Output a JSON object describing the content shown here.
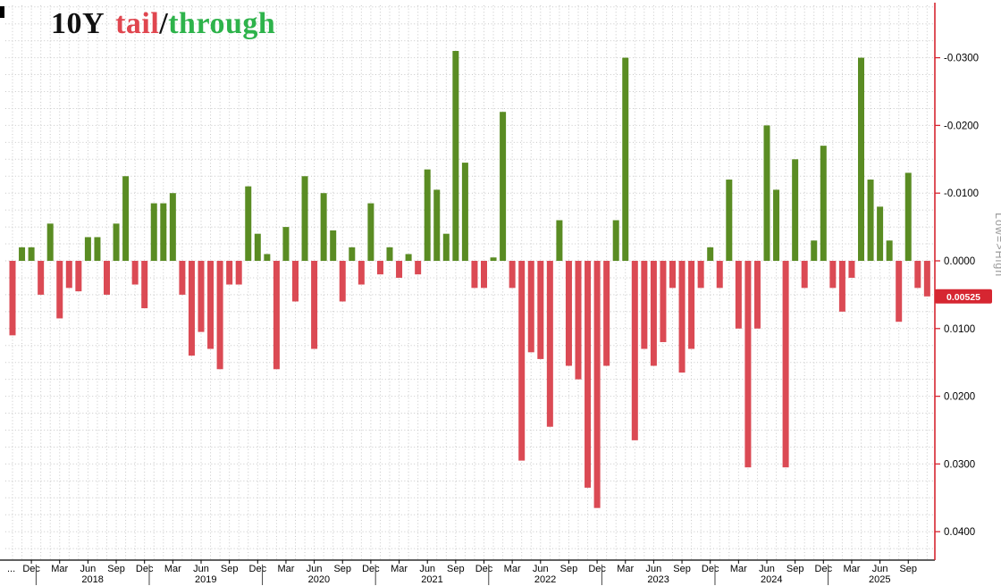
{
  "title": {
    "instrument": "10Y",
    "tail": "tail",
    "sep": "/",
    "through": "through"
  },
  "colors": {
    "tail_red": "#db4a54",
    "through_green": "#5a8c23",
    "title_red": "#e0464f",
    "title_green": "#2eb34b",
    "title_black": "#111111",
    "axis_red": "#d62631",
    "badge_bg": "#d62631",
    "badge_text": "#ffffff",
    "grid": "#c8c8c8",
    "axis_text": "#000000",
    "note_grey": "#9b9b9b",
    "x_axis_line": "#000000"
  },
  "y_axis": {
    "ticks": [
      {
        "label": "-0.0300",
        "value": -0.03
      },
      {
        "label": "-0.0200",
        "value": -0.02
      },
      {
        "label": "-0.0100",
        "value": -0.01
      },
      {
        "label": "0.0000",
        "value": 0.0
      },
      {
        "label": "0.0100",
        "value": 0.01
      },
      {
        "label": "0.0200",
        "value": 0.02
      },
      {
        "label": "0.0300",
        "value": 0.03
      },
      {
        "label": "0.0400",
        "value": 0.04
      }
    ],
    "current": {
      "label": "0.00525",
      "value": 0.00525
    },
    "note": "Low=>High"
  },
  "x_axis": {
    "leading_label": "...",
    "month_labels": {
      "03": "Mar",
      "06": "Jun",
      "09": "Sep",
      "12": "Dec"
    },
    "years": [
      "2018",
      "2019",
      "2020",
      "2021",
      "2022",
      "2023",
      "2024",
      "2025"
    ]
  },
  "chart_data": {
    "type": "bar",
    "title": "10Y tail/through",
    "ylabel": "Low=>High",
    "y_inverted": true,
    "ylim": [
      -0.0335,
      0.0425
    ],
    "yticks": [
      -0.03,
      -0.02,
      -0.01,
      0.0,
      0.01,
      0.02,
      0.03,
      0.04
    ],
    "grid": "dotted, monthly vertical / 0.0025 horizontal",
    "legend": "positive = tail (red, plotted downward), negative = through (green, plotted upward), right axis inverted Low=>High",
    "last_value": 0.00525,
    "months": [
      "2017-10",
      "2017-11",
      "2017-12",
      "2018-01",
      "2018-02",
      "2018-03",
      "2018-04",
      "2018-05",
      "2018-06",
      "2018-07",
      "2018-08",
      "2018-09",
      "2018-10",
      "2018-11",
      "2018-12",
      "2019-01",
      "2019-02",
      "2019-03",
      "2019-04",
      "2019-05",
      "2019-06",
      "2019-07",
      "2019-08",
      "2019-09",
      "2019-10",
      "2019-11",
      "2019-12",
      "2020-01",
      "2020-02",
      "2020-03",
      "2020-04",
      "2020-05",
      "2020-06",
      "2020-07",
      "2020-08",
      "2020-09",
      "2020-10",
      "2020-11",
      "2020-12",
      "2021-01",
      "2021-02",
      "2021-03",
      "2021-04",
      "2021-05",
      "2021-06",
      "2021-07",
      "2021-08",
      "2021-09",
      "2021-10",
      "2021-11",
      "2021-12",
      "2022-01",
      "2022-02",
      "2022-03",
      "2022-04",
      "2022-05",
      "2022-06",
      "2022-07",
      "2022-08",
      "2022-09",
      "2022-10",
      "2022-11",
      "2022-12",
      "2023-01",
      "2023-02",
      "2023-03",
      "2023-04",
      "2023-05",
      "2023-06",
      "2023-07",
      "2023-08",
      "2023-09",
      "2023-10",
      "2023-11",
      "2023-12",
      "2024-01",
      "2024-02",
      "2024-03",
      "2024-04",
      "2024-05",
      "2024-06",
      "2024-07",
      "2024-08",
      "2024-09",
      "2024-10",
      "2024-11",
      "2024-12",
      "2025-01",
      "2025-02",
      "2025-03",
      "2025-04",
      "2025-05",
      "2025-06",
      "2025-07",
      "2025-08",
      "2025-09",
      "2025-10",
      "2025-11"
    ],
    "values": [
      0.011,
      -0.002,
      -0.002,
      0.005,
      -0.0055,
      0.0085,
      0.004,
      0.0045,
      -0.0035,
      -0.0035,
      0.005,
      -0.0055,
      -0.0125,
      0.0035,
      0.007,
      -0.0085,
      -0.0085,
      -0.01,
      0.005,
      0.014,
      0.0105,
      0.013,
      0.016,
      0.0035,
      0.0035,
      -0.011,
      -0.004,
      -0.001,
      0.016,
      -0.005,
      0.006,
      -0.0125,
      0.013,
      -0.01,
      -0.0045,
      0.006,
      -0.002,
      0.0035,
      -0.0085,
      0.002,
      -0.002,
      0.0025,
      -0.001,
      0.002,
      -0.0135,
      -0.0105,
      -0.004,
      -0.031,
      -0.0145,
      0.004,
      0.004,
      -0.0005,
      -0.022,
      0.004,
      0.0295,
      0.0135,
      0.0145,
      0.0245,
      -0.006,
      0.0155,
      0.0175,
      0.0335,
      0.0365,
      0.0155,
      -0.006,
      -0.03,
      0.0265,
      0.013,
      0.0155,
      0.012,
      0.004,
      0.0165,
      0.013,
      0.004,
      -0.002,
      0.004,
      -0.012,
      0.01,
      0.0305,
      0.01,
      -0.02,
      -0.0105,
      0.0305,
      -0.015,
      0.004,
      -0.003,
      -0.017,
      0.004,
      0.0075,
      0.0025,
      -0.03,
      -0.012,
      -0.008,
      -0.003,
      0.009,
      -0.013,
      0.004,
      0.00525
    ]
  }
}
